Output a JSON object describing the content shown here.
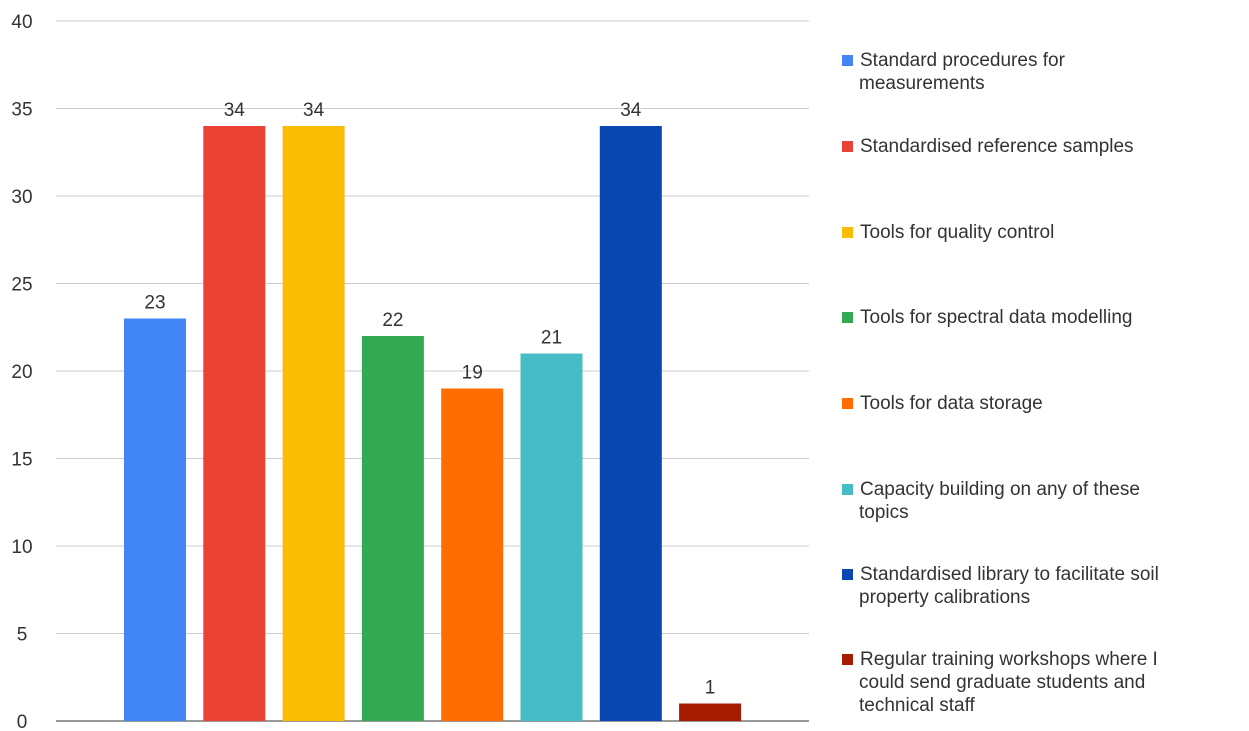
{
  "chart_data": {
    "type": "bar",
    "title": "",
    "xlabel": "",
    "ylabel": "",
    "ylim": [
      0,
      40
    ],
    "yticks": [
      0,
      5,
      10,
      15,
      20,
      25,
      30,
      35,
      40
    ],
    "grid": true,
    "legend_position": "right",
    "series": [
      {
        "name": "Standard procedures for measurements",
        "value": 23,
        "color": "#4285f4",
        "legend_lines": [
          "Standard procedures for",
          "measurements"
        ]
      },
      {
        "name": "Standardised reference samples",
        "value": 34,
        "color": "#ea4335",
        "legend_lines": [
          "Standardised reference samples"
        ]
      },
      {
        "name": "Tools for quality control",
        "value": 34,
        "color": "#fbbc04",
        "legend_lines": [
          "Tools for quality control"
        ]
      },
      {
        "name": "Tools for spectral data modelling",
        "value": 22,
        "color": "#34a853",
        "legend_lines": [
          "Tools for spectral data modelling"
        ]
      },
      {
        "name": "Tools for data storage",
        "value": 19,
        "color": "#ff6d01",
        "legend_lines": [
          "Tools for data storage"
        ]
      },
      {
        "name": "Capacity building on any of these topics",
        "value": 21,
        "color": "#46bdc6",
        "legend_lines": [
          "Capacity building on any of these",
          "topics"
        ]
      },
      {
        "name": "Standardised library to facilitate soil property calibrations",
        "value": 34,
        "color": "#0b47b2",
        "legend_lines": [
          "Standardised library to facilitate soil",
          "property calibrations"
        ]
      },
      {
        "name": "Regular training workshops where I could send graduate students and technical staff",
        "value": 1,
        "color": "#a61c00",
        "legend_lines": [
          "Regular training workshops where I",
          "could send graduate students and",
          "technical staff"
        ]
      }
    ]
  }
}
